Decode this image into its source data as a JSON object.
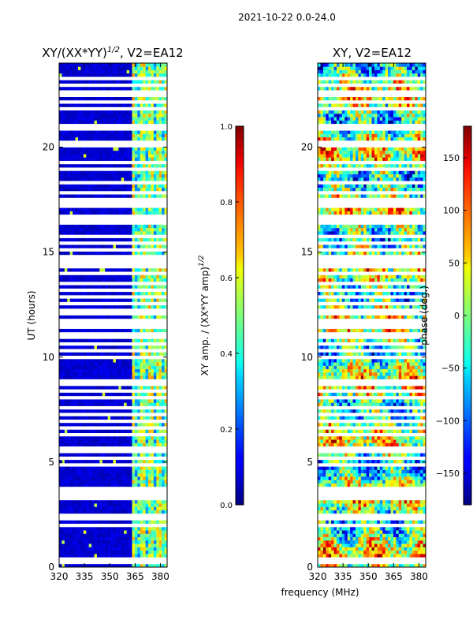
{
  "suptitle": "2021-10-22 0.0-24.0",
  "xlabel_shared": "frequency (MHz)",
  "colors": {
    "missing": "#ffffff",
    "frame": "#000000"
  },
  "chart_data": [
    {
      "type": "heatmap",
      "title_main": "XY/(XX*YY)",
      "title_sup": "1/2",
      "title_tail": ", V2=EA12",
      "xlabel": "",
      "ylabel": "UT (hours)",
      "xlim": [
        320,
        384
      ],
      "ylim": [
        0,
        24
      ],
      "xticks": [
        320,
        335,
        350,
        365,
        380
      ],
      "yticks": [
        0,
        5,
        10,
        15,
        20
      ],
      "colorbar": {
        "label_main": "XY amp. / (XX*YY amp)",
        "label_sup": "1/2",
        "range": [
          0.0,
          1.0
        ],
        "ticks": [
          "0.0",
          "0.2",
          "0.4",
          "0.6",
          "0.8",
          "1.0"
        ],
        "colormap": "jet"
      },
      "description_values": {
        "low_band_value": 0.08,
        "high_band_range_MHz": [
          363,
          384
        ],
        "high_band_value": 0.55
      }
    },
    {
      "type": "heatmap",
      "title": "XY, V2=EA12",
      "xlabel": "frequency (MHz)",
      "ylabel": "",
      "xlim": [
        320,
        384
      ],
      "ylim": [
        0,
        24
      ],
      "xticks": [
        320,
        335,
        350,
        365,
        380
      ],
      "yticks": [
        0,
        5,
        10,
        15,
        20
      ],
      "colorbar": {
        "label": "phase (deg.)",
        "range": [
          -180,
          180
        ],
        "ticks": [
          "150",
          "100",
          "50",
          "0",
          "−50",
          "−100",
          "−150"
        ],
        "tick_values": [
          150,
          100,
          50,
          0,
          -50,
          -100,
          -150
        ],
        "colormap": "jet"
      }
    }
  ],
  "gap_hours": [
    0.2,
    0.45,
    2.0,
    2.3,
    2.55,
    3.35,
    3.6,
    3.75,
    4.9,
    5.15,
    5.6,
    6.3,
    6.7,
    7.0,
    7.3,
    7.65,
    8.1,
    8.4,
    8.8,
    10.0,
    10.35,
    10.6,
    10.9,
    11.15,
    11.4,
    11.55,
    11.8,
    12.05,
    12.3,
    12.6,
    12.9,
    13.15,
    13.5,
    14.0,
    14.4,
    14.6,
    14.85,
    15.1,
    15.4,
    15.8,
    16.4,
    16.65,
    17.2,
    17.45,
    17.8,
    18.3,
    18.9,
    19.3,
    20.1,
    20.25,
    20.95,
    21.9,
    22.2,
    22.5,
    22.7,
    22.95,
    23.3
  ]
}
